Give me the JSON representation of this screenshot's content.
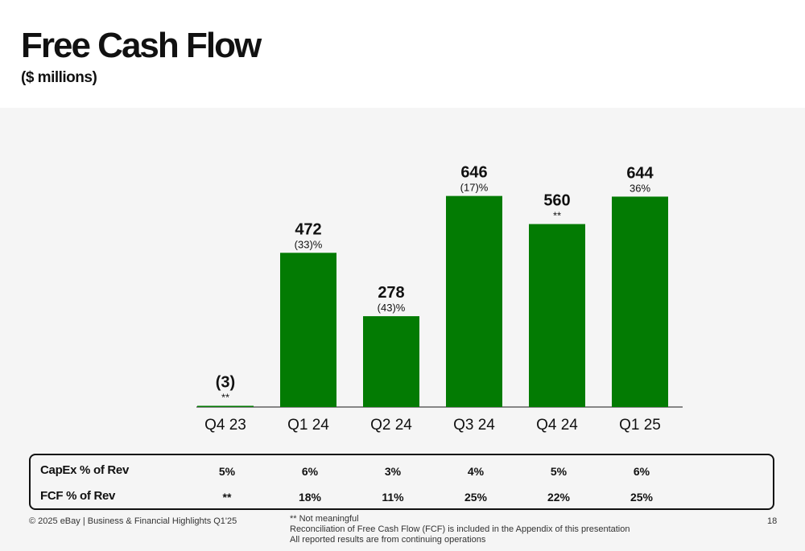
{
  "header": {
    "title": "Free Cash Flow",
    "subtitle": "($ millions)"
  },
  "chart_data": {
    "type": "bar",
    "categories": [
      "Q4 23",
      "Q1 24",
      "Q2 24",
      "Q3 24",
      "Q4 24",
      "Q1 25"
    ],
    "values": [
      -3,
      472,
      278,
      646,
      560,
      644
    ],
    "value_labels": [
      "(3)",
      "472",
      "278",
      "646",
      "560",
      "644"
    ],
    "growth_labels": [
      "**",
      "(33)%",
      "(43)%",
      "(17)%",
      "**",
      "36%"
    ],
    "title": "Free Cash Flow",
    "subtitle": "($ millions)",
    "ylim": [
      0,
      650
    ],
    "grid": false,
    "legend": "none",
    "bar_color": "#037b03"
  },
  "metrics_table": {
    "rows": [
      {
        "label": "CapEx % of Rev",
        "values": [
          "5%",
          "6%",
          "3%",
          "4%",
          "5%",
          "6%"
        ]
      },
      {
        "label": "FCF % of Rev",
        "values": [
          "**",
          "18%",
          "11%",
          "25%",
          "22%",
          "25%"
        ]
      }
    ]
  },
  "footer": {
    "left": "© 2025 eBay | Business & Financial Highlights Q1'25",
    "notes": [
      "** Not meaningful",
      "Reconciliation of Free Cash Flow (FCF) is included in the Appendix of this presentation",
      "All reported results are from continuing operations"
    ],
    "page_number": "18"
  }
}
